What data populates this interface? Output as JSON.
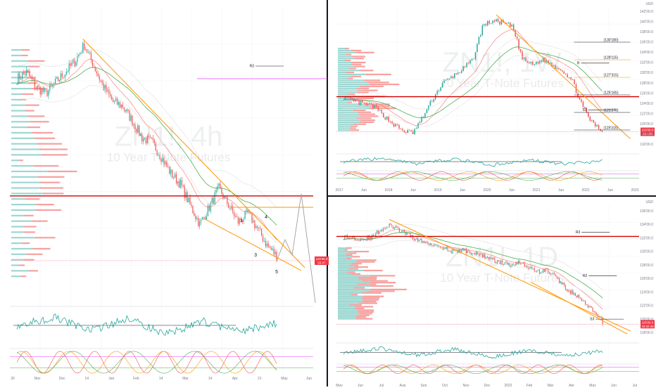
{
  "panels": [
    {
      "id": "left",
      "symbol": "ZN1!",
      "interval": "4h",
      "description": "10 Year T-Note Futures",
      "price_tag": [
        "119'26.0",
        "03:47"
      ],
      "levels": [
        "R3"
      ],
      "wave_labels": [
        "1",
        "3",
        "4",
        "5"
      ],
      "x_ticks": [
        "30",
        "Nov",
        "Dec",
        "14",
        "Jan",
        "Feb",
        "14",
        "Mar",
        "14",
        "Apr",
        "21",
        "May",
        "Jun"
      ],
      "colors": {
        "up": "#26a69a",
        "down": "#ef5350",
        "trend": "#ff9800",
        "level": "#d50000",
        "ema": "#4caf50",
        "projection": "#9e9e9e",
        "magenta": "#e040fb"
      }
    },
    {
      "id": "top-right",
      "symbol": "ZN1!",
      "interval": "1W",
      "description": "10 Year T-Note Futures",
      "currency": "USD",
      "price_tag": [
        "119'26.0",
        "4d 12h"
      ],
      "levels": [
        "R",
        "S3"
      ],
      "level_labels": [
        "(130'180)",
        "(128'115)",
        "(127'315)",
        "(125'165)",
        "(121'270)",
        "(119'315)"
      ],
      "x_ticks": [
        "2017",
        "Jun",
        "2018",
        "Jun",
        "2019",
        "Jun",
        "2020",
        "Jun",
        "2021",
        "Jun",
        "2022",
        "Jun",
        "2023"
      ],
      "y_ticks": [
        "142'00.0",
        "140'00.0",
        "138'00.0",
        "136'00.0",
        "134'00.0",
        "132'00.0",
        "130'00.0",
        "128'00.0",
        "126'00.0",
        "124'00.0",
        "122'00.0",
        "120'00.0",
        "118'00.0",
        "116'00.0"
      ]
    },
    {
      "id": "bottom-right",
      "symbol": "ZN1!",
      "interval": "1D",
      "description": "10 Year T-Note Futures",
      "currency": "USD",
      "price_tag": [
        "119'26.0",
        "15:32:46"
      ],
      "levels": [
        "R3",
        "R2",
        "S3"
      ],
      "x_ticks": [
        "May",
        "Jun",
        "Jul",
        "Aug",
        "Sep",
        "Oct",
        "Nov",
        "Dec",
        "2022",
        "Feb",
        "Mar",
        "Apr",
        "May",
        "Jun",
        "Jul"
      ],
      "y_ticks": [
        "136'00.0",
        "134'00.0",
        "132'00.0",
        "130'00.0",
        "128'00.0",
        "126'00.0",
        "124'00.0",
        "122'00.0",
        "120'00.0",
        "118'00.0"
      ]
    }
  ],
  "chart_data": [
    {
      "type": "candlestick",
      "title": "ZN1!, 4h",
      "subtitle": "10 Year T-Note Futures",
      "approx_close": [
        128.6,
        128.9,
        128.2,
        127.9,
        128.4,
        128.9,
        129.4,
        130.2,
        129.2,
        128.2,
        127.5,
        127.3,
        126.6,
        125.8,
        125.6,
        124.9,
        124.1,
        123.6,
        122.6,
        121.7,
        122.5,
        123.4,
        122.6,
        121.8,
        122.2,
        121.5,
        120.7,
        120.2
      ],
      "ylim": [
        118,
        132
      ]
    },
    {
      "type": "candlestick",
      "title": "ZN1!, 1W",
      "subtitle": "10 Year T-Note Futures",
      "approx_close": [
        125.8,
        125.0,
        124.6,
        124.2,
        122.6,
        121.0,
        119.8,
        119.5,
        122.3,
        125.6,
        128.3,
        129.5,
        130.8,
        132.4,
        138.5,
        139.3,
        139.0,
        138.2,
        132.5,
        131.5,
        132.5,
        131.5,
        130.6,
        128.7,
        124.2,
        121.2,
        119.8
      ],
      "ylim": [
        116,
        142
      ]
    },
    {
      "type": "candlestick",
      "title": "ZN1!, 1D",
      "subtitle": "10 Year T-Note Futures",
      "approx_close": [
        132.3,
        132.2,
        132.0,
        132.2,
        133.4,
        134.0,
        133.3,
        132.6,
        131.9,
        131.4,
        131.2,
        130.6,
        130.1,
        130.4,
        129.9,
        129.6,
        129.0,
        128.5,
        128.2,
        128.7,
        127.8,
        127.2,
        127.4,
        126.3,
        124.8,
        123.8,
        122.6,
        121.3,
        119.8
      ],
      "ylim": [
        117,
        137
      ]
    }
  ]
}
